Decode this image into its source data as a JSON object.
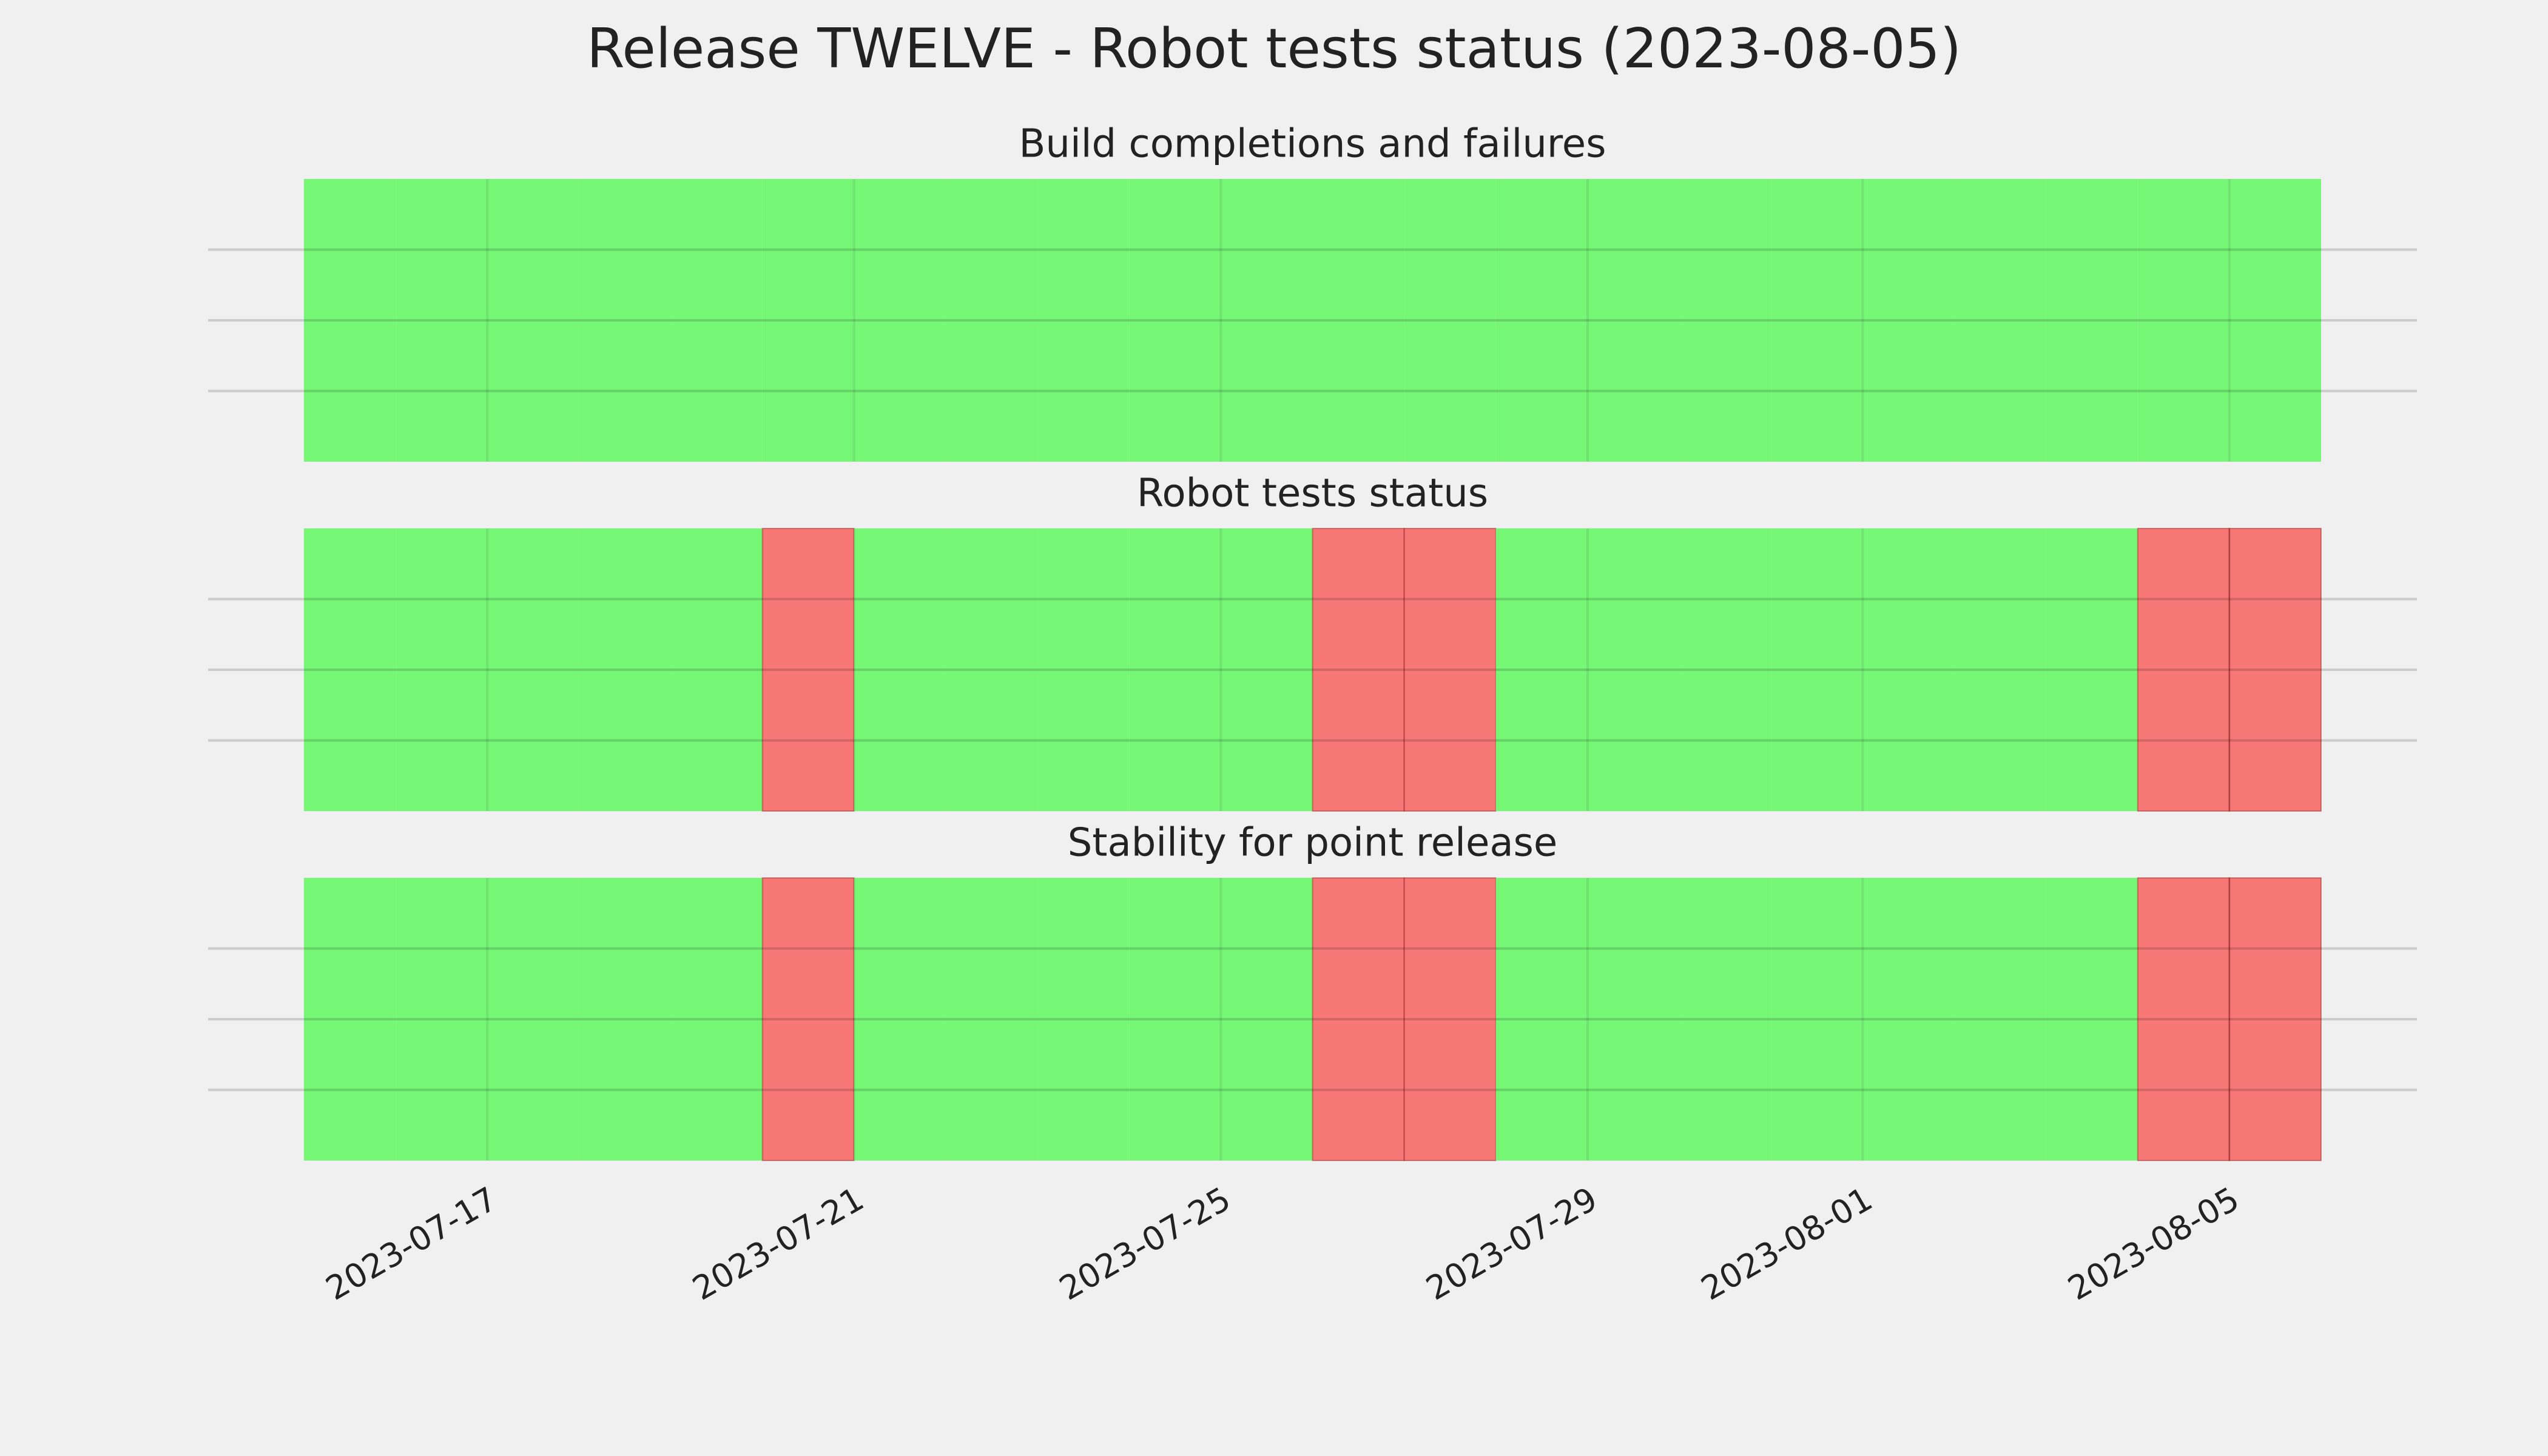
{
  "chart_data": [
    {
      "type": "timeline",
      "title": "Build completions and failures",
      "x": [
        "2023-07-15",
        "2023-07-16",
        "2023-07-17",
        "2023-07-18",
        "2023-07-19",
        "2023-07-20",
        "2023-07-21",
        "2023-07-22",
        "2023-07-23",
        "2023-07-24",
        "2023-07-25",
        "2023-07-26",
        "2023-07-27",
        "2023-07-28",
        "2023-07-29",
        "2023-07-30",
        "2023-07-31",
        "2023-08-01",
        "2023-08-02",
        "2023-08-03",
        "2023-08-04",
        "2023-08-05"
      ],
      "passed": [
        true,
        true,
        true,
        true,
        true,
        true,
        true,
        true,
        true,
        true,
        true,
        true,
        true,
        true,
        true,
        true,
        true,
        true,
        true,
        true,
        true,
        true
      ],
      "colors": {
        "pass": "#76f776",
        "fail": "#f77676"
      },
      "xlim": [
        "2023-07-15",
        "2023-08-06"
      ],
      "ylim": [
        0,
        1
      ],
      "yticks": [
        0.25,
        0.5,
        0.75
      ],
      "xticks": [
        "2023-07-17",
        "2023-07-21",
        "2023-07-25",
        "2023-07-29",
        "2023-08-01",
        "2023-08-05"
      ],
      "grid": true
    },
    {
      "type": "timeline",
      "title": "Robot tests status",
      "x": [
        "2023-07-15",
        "2023-07-16",
        "2023-07-17",
        "2023-07-18",
        "2023-07-19",
        "2023-07-20",
        "2023-07-21",
        "2023-07-22",
        "2023-07-23",
        "2023-07-24",
        "2023-07-25",
        "2023-07-26",
        "2023-07-27",
        "2023-07-28",
        "2023-07-29",
        "2023-07-30",
        "2023-07-31",
        "2023-08-01",
        "2023-08-02",
        "2023-08-03",
        "2023-08-04",
        "2023-08-05"
      ],
      "passed": [
        true,
        true,
        true,
        true,
        true,
        false,
        true,
        true,
        true,
        true,
        true,
        false,
        false,
        true,
        true,
        true,
        true,
        true,
        true,
        true,
        false,
        false
      ],
      "colors": {
        "pass": "#76f776",
        "fail": "#f77676"
      },
      "xlim": [
        "2023-07-15",
        "2023-08-06"
      ],
      "ylim": [
        0,
        1
      ],
      "yticks": [
        0.25,
        0.5,
        0.75
      ],
      "xticks": [
        "2023-07-17",
        "2023-07-21",
        "2023-07-25",
        "2023-07-29",
        "2023-08-01",
        "2023-08-05"
      ],
      "grid": true
    },
    {
      "type": "timeline",
      "title": "Stability for point release",
      "x": [
        "2023-07-15",
        "2023-07-16",
        "2023-07-17",
        "2023-07-18",
        "2023-07-19",
        "2023-07-20",
        "2023-07-21",
        "2023-07-22",
        "2023-07-23",
        "2023-07-24",
        "2023-07-25",
        "2023-07-26",
        "2023-07-27",
        "2023-07-28",
        "2023-07-29",
        "2023-07-30",
        "2023-07-31",
        "2023-08-01",
        "2023-08-02",
        "2023-08-03",
        "2023-08-04",
        "2023-08-05"
      ],
      "passed": [
        true,
        true,
        true,
        true,
        true,
        false,
        true,
        true,
        true,
        true,
        true,
        false,
        false,
        true,
        true,
        true,
        true,
        true,
        true,
        true,
        false,
        false
      ],
      "colors": {
        "pass": "#76f776",
        "fail": "#f77676"
      },
      "xlim": [
        "2023-07-15",
        "2023-08-06"
      ],
      "ylim": [
        0,
        1
      ],
      "yticks": [
        0.25,
        0.5,
        0.75
      ],
      "xticks": [
        "2023-07-17",
        "2023-07-21",
        "2023-07-25",
        "2023-07-29",
        "2023-08-01",
        "2023-08-05"
      ],
      "grid": true,
      "show_xtick_labels": true
    }
  ],
  "title": "Release TWELVE - Robot tests status (2023-08-05)"
}
